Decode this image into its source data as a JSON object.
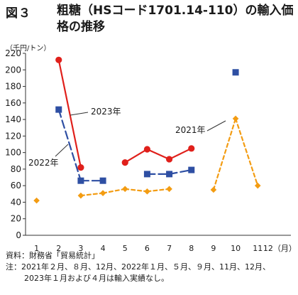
{
  "figure": {
    "label": "図３",
    "title": "粗糖（HSコード1701.14-110）の輸入価格の推移",
    "unit": "（千円/トン）"
  },
  "notes": {
    "source": "資料：財務省「貿易統計」",
    "note_line1": "注：2021年２月、８月、12月、2022年１月、５月、９月、11月、12月、",
    "note_line2": "2023年１月および４月は輸入実績なし。"
  },
  "chart_data": {
    "type": "line",
    "title": "粗糖（HSコード1701.14-110）の輸入価格の推移",
    "ylabel": "（千円/トン）",
    "xlabel": "（月）",
    "x": [
      1,
      2,
      3,
      4,
      5,
      6,
      7,
      8,
      9,
      10,
      11,
      12
    ],
    "x_tick_labels": [
      "1",
      "2",
      "3",
      "4",
      "5",
      "6",
      "7",
      "8",
      "9",
      "10",
      "11",
      "12（月）"
    ],
    "ylim": [
      0,
      220
    ],
    "y_ticks": [
      0,
      20,
      40,
      60,
      80,
      100,
      120,
      140,
      160,
      180,
      200,
      220
    ],
    "grid": false,
    "series": [
      {
        "name": "2021年",
        "color": "#f39c12",
        "marker": "diamond",
        "line_style": "dashed",
        "values": [
          42,
          null,
          48,
          51,
          56,
          53,
          56,
          null,
          55,
          141,
          60,
          null
        ]
      },
      {
        "name": "2022年",
        "color": "#2e4fa3",
        "marker": "square",
        "line_style": "long-dashed",
        "values": [
          null,
          152,
          66,
          66,
          null,
          74,
          74,
          79,
          null,
          197,
          null,
          null
        ]
      },
      {
        "name": "2023年",
        "color": "#e0201b",
        "marker": "circle",
        "line_style": "solid",
        "values": [
          null,
          212,
          82,
          null,
          88,
          104,
          92,
          105,
          null,
          null,
          null,
          null
        ]
      }
    ]
  }
}
